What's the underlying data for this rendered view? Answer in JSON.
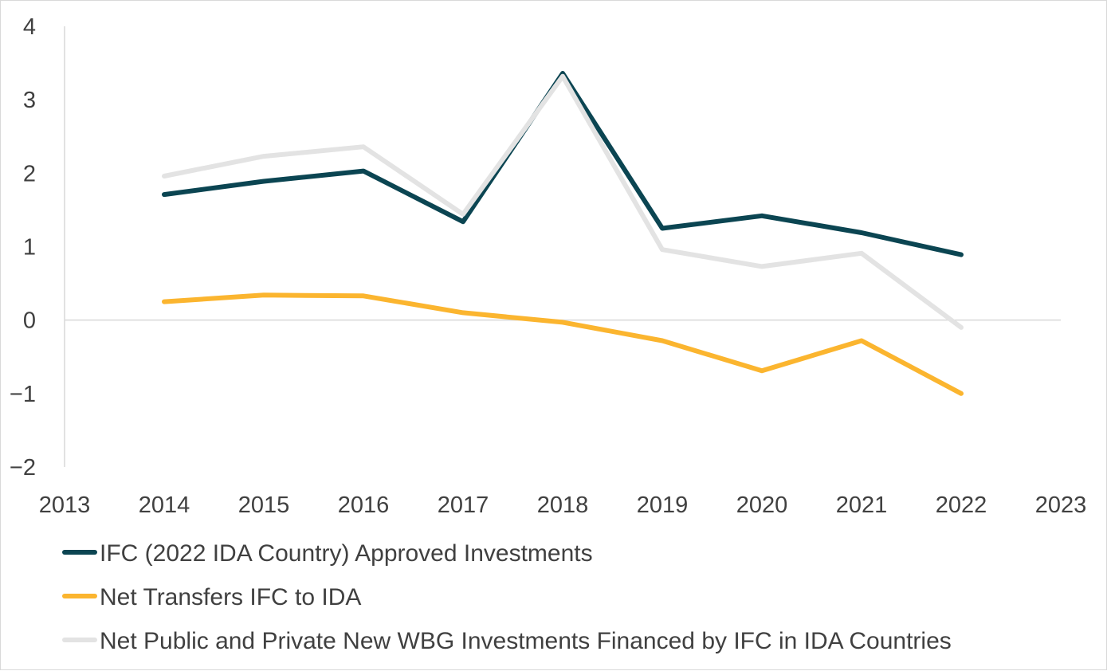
{
  "chart_data": {
    "type": "line",
    "title": "",
    "xlabel": "",
    "ylabel": "",
    "xlim": [
      2013,
      2023
    ],
    "ylim": [
      -2,
      4
    ],
    "x_ticks": [
      "2013",
      "2014",
      "2015",
      "2016",
      "2017",
      "2018",
      "2019",
      "2020",
      "2021",
      "2022",
      "2023"
    ],
    "y_ticks": [
      "−2",
      "−1",
      "0",
      "1",
      "2",
      "3",
      "4"
    ],
    "grid": false,
    "legend_position": "bottom-left",
    "x": [
      2014,
      2015,
      2016,
      2017,
      2018,
      2019,
      2020,
      2021,
      2022
    ],
    "series": [
      {
        "name": "IFC (2022 IDA Country) Approved Investments",
        "color": "#0b4552",
        "values": [
          1.71,
          1.89,
          2.03,
          1.34,
          3.36,
          1.25,
          1.42,
          1.19,
          0.89
        ]
      },
      {
        "name": "Net Transfers IFC to IDA",
        "color": "#fbb52f",
        "values": [
          0.25,
          0.34,
          0.33,
          0.1,
          -0.03,
          -0.28,
          -0.69,
          -0.28,
          -1.0
        ]
      },
      {
        "name": "Net Public and Private New WBG Investments Financed by IFC in IDA Countries",
        "color": "#e3e3e3",
        "values": [
          1.96,
          2.23,
          2.36,
          1.44,
          3.32,
          0.96,
          0.73,
          0.91,
          -0.1
        ]
      }
    ]
  }
}
